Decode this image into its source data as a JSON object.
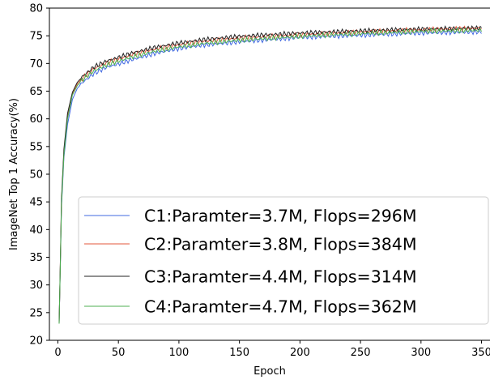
{
  "chart_data": {
    "type": "line",
    "xlabel": "Epoch",
    "ylabel": "ImageNet Top 1 Accuracy(%)",
    "xlim": [
      -7,
      357
    ],
    "ylim": [
      20,
      80
    ],
    "xticks": [
      0,
      50,
      100,
      150,
      200,
      250,
      300,
      350
    ],
    "yticks": [
      20,
      25,
      30,
      35,
      40,
      45,
      50,
      55,
      60,
      65,
      70,
      75,
      80
    ],
    "grid": false,
    "legend_position": "lower-right",
    "series": [
      {
        "name": "C1:Paramter=3.7M, Flops=296M",
        "color": "#4169e1",
        "points": [
          [
            1,
            23
          ],
          [
            3,
            44
          ],
          [
            5,
            53
          ],
          [
            8,
            59
          ],
          [
            12,
            63.5
          ],
          [
            16,
            65.5
          ],
          [
            20,
            66.5
          ],
          [
            30,
            68.2
          ],
          [
            40,
            69.3
          ],
          [
            50,
            69.9
          ],
          [
            60,
            70.6
          ],
          [
            80,
            71.8
          ],
          [
            100,
            72.7
          ],
          [
            120,
            73.3
          ],
          [
            150,
            73.9
          ],
          [
            200,
            74.7
          ],
          [
            250,
            75.1
          ],
          [
            300,
            75.5
          ],
          [
            350,
            75.7
          ]
        ]
      },
      {
        "name": "C2:Paramter=3.8M, Flops=384M",
        "color": "#e3573b",
        "points": [
          [
            1,
            23
          ],
          [
            3,
            45
          ],
          [
            5,
            54
          ],
          [
            8,
            60.5
          ],
          [
            12,
            64.5
          ],
          [
            16,
            66.3
          ],
          [
            20,
            67.3
          ],
          [
            30,
            69.1
          ],
          [
            40,
            70.1
          ],
          [
            50,
            70.8
          ],
          [
            60,
            71.5
          ],
          [
            80,
            72.6
          ],
          [
            100,
            73.4
          ],
          [
            120,
            74
          ],
          [
            150,
            74.6
          ],
          [
            200,
            75.2
          ],
          [
            250,
            75.7
          ],
          [
            300,
            76.1
          ],
          [
            350,
            76.4
          ]
        ]
      },
      {
        "name": "C3:Paramter=4.4M, Flops=314M",
        "color": "#222222",
        "points": [
          [
            1,
            23
          ],
          [
            3,
            45.5
          ],
          [
            5,
            54.5
          ],
          [
            8,
            61
          ],
          [
            12,
            64.8
          ],
          [
            16,
            66.6
          ],
          [
            20,
            67.6
          ],
          [
            30,
            69.4
          ],
          [
            40,
            70.4
          ],
          [
            50,
            71.1
          ],
          [
            60,
            71.8
          ],
          [
            80,
            72.9
          ],
          [
            100,
            73.7
          ],
          [
            120,
            74.3
          ],
          [
            150,
            74.9
          ],
          [
            200,
            75.5
          ],
          [
            250,
            75.9
          ],
          [
            300,
            76.2
          ],
          [
            350,
            76.4
          ]
        ]
      },
      {
        "name": "C4:Paramter=4.7M, Flops=362M",
        "color": "#4caf50",
        "points": [
          [
            1,
            23
          ],
          [
            3,
            44.5
          ],
          [
            5,
            53.5
          ],
          [
            8,
            60
          ],
          [
            12,
            64.3
          ],
          [
            16,
            66
          ],
          [
            20,
            67
          ],
          [
            30,
            68.7
          ],
          [
            40,
            69.7
          ],
          [
            50,
            70.4
          ],
          [
            60,
            71.1
          ],
          [
            80,
            72.2
          ],
          [
            100,
            73
          ],
          [
            120,
            73.6
          ],
          [
            150,
            74.2
          ],
          [
            200,
            74.9
          ],
          [
            250,
            75.4
          ],
          [
            300,
            75.8
          ],
          [
            350,
            76
          ]
        ]
      }
    ]
  }
}
